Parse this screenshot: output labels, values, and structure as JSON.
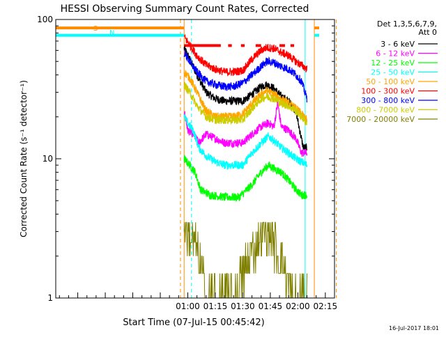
{
  "chart_data": {
    "type": "line",
    "title": "HESSI Observing Summary Count Rates, Corrected",
    "xlabel": "Start Time (07-Jul-15 00:45:42)",
    "ylabel": "Corrected Count Rate (s⁻¹ detector⁻¹)",
    "y_scale": "log",
    "ylim": [
      1,
      100
    ],
    "xlim_minutes": [
      -12,
      140
    ],
    "grid": false,
    "legend_title": [
      "Det 1,3,5,6,7,9,",
      "Att 0"
    ],
    "legend_placement": "right, outside plot",
    "x_ticks": [
      {
        "label": "01:00",
        "minute": 60
      },
      {
        "label": "01:15",
        "minute": 75
      },
      {
        "label": "01:30",
        "minute": 90
      },
      {
        "label": "01:45",
        "minute": 105
      },
      {
        "label": "02:00",
        "minute": 120
      },
      {
        "label": "02:15",
        "minute": 135
      }
    ],
    "y_ticks": [
      {
        "label": "1",
        "value": 1
      },
      {
        "label": "10",
        "value": 10
      },
      {
        "label": "100",
        "value": 100
      }
    ],
    "series": [
      {
        "name": "3 - 6 keV",
        "color": "#000000",
        "keys": [
          [
            58,
            62
          ],
          [
            61,
            52
          ],
          [
            65,
            40
          ],
          [
            70,
            30
          ],
          [
            75,
            27
          ],
          [
            80,
            26
          ],
          [
            85,
            26
          ],
          [
            90,
            26
          ],
          [
            95,
            29
          ],
          [
            100,
            33
          ],
          [
            103,
            34
          ],
          [
            107,
            32
          ],
          [
            111,
            28
          ],
          [
            115,
            26
          ],
          [
            119,
            22
          ],
          [
            121,
            16
          ],
          [
            123,
            12
          ],
          [
            125,
            12
          ]
        ]
      },
      {
        "name": "6 - 12 keV",
        "color": "#ff00ff",
        "keys": [
          [
            58,
            22
          ],
          [
            60,
            16
          ],
          [
            63,
            15
          ],
          [
            66,
            13
          ],
          [
            70,
            15
          ],
          [
            75,
            14
          ],
          [
            80,
            13
          ],
          [
            85,
            13
          ],
          [
            90,
            13
          ],
          [
            95,
            15
          ],
          [
            100,
            17
          ],
          [
            104,
            18
          ],
          [
            107,
            17
          ],
          [
            109,
            25
          ],
          [
            111,
            17
          ],
          [
            115,
            16
          ],
          [
            119,
            14
          ],
          [
            122,
            11
          ],
          [
            125,
            11
          ]
        ]
      },
      {
        "name": "12 - 25 keV",
        "color": "#00ff00",
        "keys": [
          [
            58,
            10
          ],
          [
            61,
            9
          ],
          [
            64,
            8
          ],
          [
            67,
            6
          ],
          [
            72,
            5.5
          ],
          [
            80,
            5.3
          ],
          [
            88,
            5.3
          ],
          [
            95,
            6.5
          ],
          [
            100,
            8
          ],
          [
            104,
            9
          ],
          [
            107,
            8.5
          ],
          [
            111,
            8
          ],
          [
            115,
            7
          ],
          [
            119,
            6
          ],
          [
            122,
            5.5
          ],
          [
            125,
            5.5
          ]
        ]
      },
      {
        "name": "25 - 50 keV",
        "color": "#00ffff",
        "keys": [
          [
            58,
            20
          ],
          [
            60,
            18
          ],
          [
            63,
            16
          ],
          [
            66,
            12
          ],
          [
            70,
            10.5
          ],
          [
            75,
            9.5
          ],
          [
            80,
            9
          ],
          [
            85,
            9
          ],
          [
            90,
            9
          ],
          [
            95,
            11
          ],
          [
            100,
            13
          ],
          [
            104,
            14.5
          ],
          [
            107,
            13.5
          ],
          [
            111,
            12
          ],
          [
            115,
            11
          ],
          [
            119,
            10
          ],
          [
            122,
            9.5
          ],
          [
            125,
            9
          ]
        ]
      },
      {
        "name": "50 - 100 keV",
        "color": "#ffa500",
        "keys": [
          [
            58,
            42
          ],
          [
            61,
            38
          ],
          [
            65,
            30
          ],
          [
            70,
            22
          ],
          [
            75,
            20
          ],
          [
            80,
            20
          ],
          [
            85,
            20
          ],
          [
            90,
            21
          ],
          [
            95,
            25
          ],
          [
            100,
            29
          ],
          [
            103,
            31
          ],
          [
            107,
            29
          ],
          [
            111,
            27
          ],
          [
            115,
            25
          ],
          [
            119,
            23
          ],
          [
            122,
            21
          ],
          [
            125,
            19
          ]
        ]
      },
      {
        "name": "100 - 300 keV",
        "color": "#ff0000",
        "keys": [
          [
            58,
            75
          ],
          [
            61,
            66
          ],
          [
            65,
            55
          ],
          [
            70,
            47
          ],
          [
            75,
            44
          ],
          [
            80,
            42
          ],
          [
            85,
            42
          ],
          [
            90,
            43
          ],
          [
            95,
            52
          ],
          [
            100,
            60
          ],
          [
            103,
            63
          ],
          [
            107,
            62
          ],
          [
            111,
            58
          ],
          [
            115,
            55
          ],
          [
            119,
            50
          ],
          [
            122,
            47
          ],
          [
            125,
            44
          ]
        ]
      },
      {
        "name": "300 - 800 keV",
        "color": "#0000ff",
        "keys": [
          [
            58,
            58
          ],
          [
            61,
            50
          ],
          [
            65,
            42
          ],
          [
            70,
            36
          ],
          [
            75,
            34
          ],
          [
            80,
            33
          ],
          [
            85,
            33
          ],
          [
            90,
            35
          ],
          [
            95,
            40
          ],
          [
            100,
            46
          ],
          [
            103,
            50
          ],
          [
            107,
            49
          ],
          [
            111,
            46
          ],
          [
            115,
            44
          ],
          [
            119,
            40
          ],
          [
            122,
            36
          ],
          [
            125,
            27
          ]
        ]
      },
      {
        "name": "800 - 7000 keV",
        "color": "#cccc00",
        "keys": [
          [
            58,
            34
          ],
          [
            61,
            30
          ],
          [
            65,
            24
          ],
          [
            70,
            20
          ],
          [
            75,
            19
          ],
          [
            80,
            19
          ],
          [
            85,
            19
          ],
          [
            90,
            19
          ],
          [
            95,
            23
          ],
          [
            100,
            27
          ],
          [
            103,
            28
          ],
          [
            107,
            27
          ],
          [
            111,
            25
          ],
          [
            115,
            24
          ],
          [
            119,
            22
          ],
          [
            122,
            20
          ],
          [
            125,
            18
          ]
        ]
      },
      {
        "name": "7000 - 20000 keV",
        "color": "#808000",
        "keys": [
          [
            58,
            3.5
          ],
          [
            60,
            3
          ],
          [
            63,
            2.5
          ],
          [
            66,
            2
          ],
          [
            70,
            1
          ],
          [
            75,
            1
          ],
          [
            80,
            1
          ],
          [
            85,
            1
          ],
          [
            90,
            1.5
          ],
          [
            94,
            2
          ],
          [
            98,
            2.5
          ],
          [
            101,
            3
          ],
          [
            104,
            2.8
          ],
          [
            107,
            2.5
          ],
          [
            110,
            2
          ],
          [
            113,
            1.5
          ],
          [
            117,
            1
          ],
          [
            121,
            1
          ],
          [
            124,
            1
          ],
          [
            125,
            1
          ]
        ]
      }
    ],
    "segment_bars": [
      {
        "label": "S",
        "color": "#ff8c00",
        "level": 87,
        "ranges": [
          [
            -12,
            0
          ],
          [
            144,
            150
          ]
        ]
      },
      {
        "label": "N",
        "color": "#00ffff",
        "level": 77,
        "ranges": [
          [
            -12,
            0
          ],
          [
            144,
            150
          ]
        ]
      },
      {
        "label": "",
        "color": "#ff0000",
        "level": 65,
        "ranges": [
          [
            0,
            20
          ],
          [
            24,
            26
          ],
          [
            31,
            33
          ],
          [
            39,
            42
          ],
          [
            52,
            55
          ],
          [
            58,
            60
          ]
        ]
      }
    ],
    "vertical_markers": [
      {
        "minute": 56,
        "color": "#ff8c00",
        "style": "dashed"
      },
      {
        "minute": 58,
        "color": "#ff8c00",
        "style": "solid"
      },
      {
        "minute": 62,
        "color": "#00ffff",
        "style": "dashed"
      },
      {
        "minute": 124,
        "color": "#00ffff",
        "style": "solid"
      },
      {
        "minute": 129,
        "color": "#ff8c00",
        "style": "solid"
      },
      {
        "minute": 141,
        "color": "#ff8c00",
        "style": "dashed"
      }
    ]
  },
  "footer": {
    "timestamp": "16-Jul-2017 18:01"
  }
}
